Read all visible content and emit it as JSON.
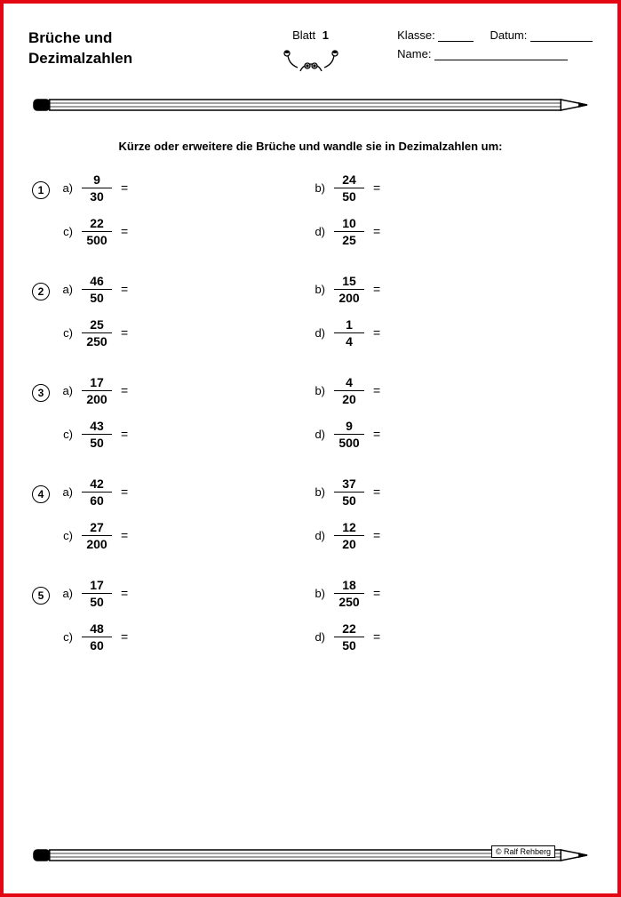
{
  "title_line1": "Brüche und",
  "title_line2": "Dezimalzahlen",
  "blatt_label": "Blatt",
  "blatt_num": "1",
  "klasse_label": "Klasse:",
  "datum_label": "Datum:",
  "name_label": "Name:",
  "instruction": "Kürze oder erweitere die Brüche und wandle sie in Dezimalzahlen um:",
  "copyright": "© Ralf Rehberg",
  "colors": {
    "border": "#e30613",
    "text": "#000000",
    "bg": "#ffffff"
  },
  "groups": [
    {
      "n": "1",
      "items": [
        {
          "k": "a",
          "num": "9",
          "den": "30"
        },
        {
          "k": "b",
          "num": "24",
          "den": "50"
        },
        {
          "k": "c",
          "num": "22",
          "den": "500"
        },
        {
          "k": "d",
          "num": "10",
          "den": "25"
        }
      ]
    },
    {
      "n": "2",
      "items": [
        {
          "k": "a",
          "num": "46",
          "den": "50"
        },
        {
          "k": "b",
          "num": "15",
          "den": "200"
        },
        {
          "k": "c",
          "num": "25",
          "den": "250"
        },
        {
          "k": "d",
          "num": "1",
          "den": "4"
        }
      ]
    },
    {
      "n": "3",
      "items": [
        {
          "k": "a",
          "num": "17",
          "den": "200"
        },
        {
          "k": "b",
          "num": "4",
          "den": "20"
        },
        {
          "k": "c",
          "num": "43",
          "den": "50"
        },
        {
          "k": "d",
          "num": "9",
          "den": "500"
        }
      ]
    },
    {
      "n": "4",
      "items": [
        {
          "k": "a",
          "num": "42",
          "den": "60"
        },
        {
          "k": "b",
          "num": "37",
          "den": "50"
        },
        {
          "k": "c",
          "num": "27",
          "den": "200"
        },
        {
          "k": "d",
          "num": "12",
          "den": "20"
        }
      ]
    },
    {
      "n": "5",
      "items": [
        {
          "k": "a",
          "num": "17",
          "den": "50"
        },
        {
          "k": "b",
          "num": "18",
          "den": "250"
        },
        {
          "k": "c",
          "num": "48",
          "den": "60"
        },
        {
          "k": "d",
          "num": "22",
          "den": "50"
        }
      ]
    }
  ]
}
